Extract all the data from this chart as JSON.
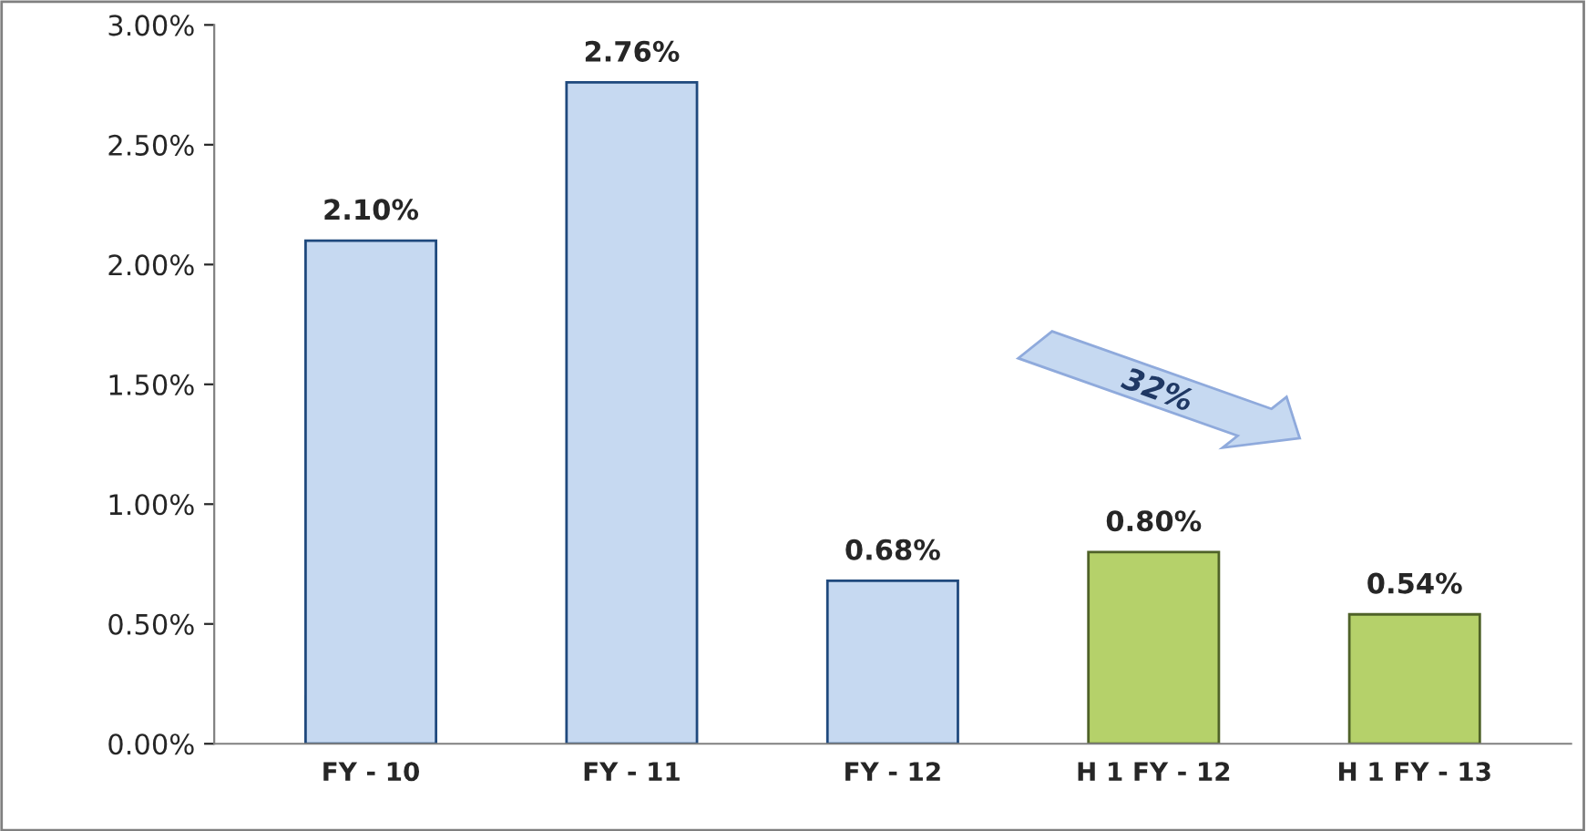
{
  "chart_data": {
    "type": "bar",
    "categories": [
      "FY - 10",
      "FY - 11",
      "FY - 12",
      "H 1 FY - 12",
      "H 1 FY - 13"
    ],
    "values": [
      2.1,
      2.76,
      0.68,
      0.8,
      0.54
    ],
    "value_labels": [
      "2.10%",
      "2.76%",
      "0.68%",
      "0.80%",
      "0.54%"
    ],
    "colors": [
      "#c6d9f1",
      "#c6d9f1",
      "#c6d9f1",
      "#b5d16a",
      "#b5d16a"
    ],
    "ylim": [
      0,
      3
    ],
    "yticks": [
      {
        "value": 0,
        "label": "0.00%"
      },
      {
        "value": 0.5,
        "label": "0.50%"
      },
      {
        "value": 1,
        "label": "1.00%"
      },
      {
        "value": 1.5,
        "label": "1.50%"
      },
      {
        "value": 2,
        "label": "2.00%"
      },
      {
        "value": 2.5,
        "label": "2.50%"
      },
      {
        "value": 3,
        "label": "3.00%"
      }
    ],
    "annotations": [
      "32%"
    ],
    "grid": false,
    "legend": false
  }
}
